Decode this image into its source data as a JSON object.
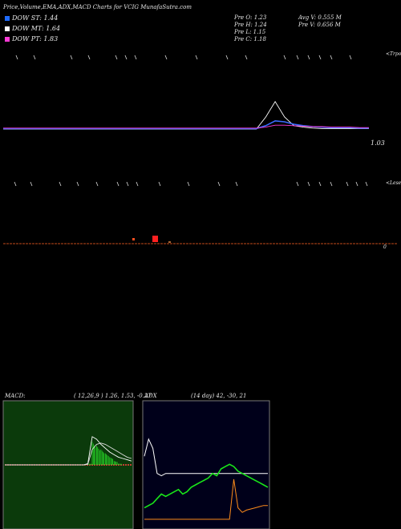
{
  "header": {
    "title": "Price,Volume,EMA,ADX,MACD Charts for VCIG MunafaSutra.com"
  },
  "legend": {
    "items": [
      {
        "label": "DOW ST: 1.44",
        "color": "#1f6bff"
      },
      {
        "label": "DOW MT: 1.64",
        "color": "#ffffff"
      },
      {
        "label": "DOW PT: 1.83",
        "color": "#ff3bd6"
      }
    ]
  },
  "stats": {
    "prev_open": "Pre   O: 1.23",
    "prev_high": "Pre   H: 1.24",
    "prev_low": "Pre   L: 1.15",
    "prev_close": "Pre   C: 1.18",
    "avg_volume": "Avg V: 0.555  M",
    "prev_volume": "Pre   V: 0.656  M"
  },
  "top_panel": {
    "side_label": "<Trpo",
    "price_label": "1.03"
  },
  "volume_panel": {
    "side_label": "<Lesen",
    "price_label": "0"
  },
  "macd": {
    "label": "MACD:",
    "params": "( 12,26,9 ) 1.26,  1.53,  -0.27",
    "colors": {
      "background": "#0b3a0b",
      "hist": "#27d427",
      "zero": "#ff4040"
    }
  },
  "adx": {
    "label": "ADX",
    "params": "(14  day) 42,  -30,  21",
    "colors": {
      "background": "#00001a",
      "adx": "#ffffff",
      "plus_di": "#19e619",
      "minus_di": "#ff8c1a"
    }
  },
  "chart_data": [
    {
      "type": "line",
      "name": "price-ema",
      "x": [
        1,
        2,
        3,
        4,
        5,
        6,
        7,
        8,
        9,
        10,
        11,
        12,
        13,
        14,
        15,
        16,
        17,
        18,
        19,
        20,
        21,
        22,
        23,
        24,
        25,
        26,
        27,
        28,
        29,
        30,
        31,
        32,
        33,
        34,
        35,
        36,
        37,
        38,
        39,
        40
      ],
      "series": [
        {
          "values": [
            1.05,
            1.05,
            1.05,
            1.05,
            1.05,
            1.05,
            1.05,
            1.05,
            1.05,
            1.05,
            1.05,
            1.05,
            1.05,
            1.05,
            1.05,
            1.05,
            1.05,
            1.05,
            1.05,
            1.05,
            1.05,
            1.05,
            1.05,
            1.05,
            1.05,
            1.05,
            1.05,
            1.05,
            1.3,
            1.62,
            1.3,
            1.12,
            1.09,
            1.07,
            1.06,
            1.06,
            1.06,
            1.06,
            1.06,
            1.06
          ]
        },
        {
          "values": [
            1.06,
            1.06,
            1.06,
            1.06,
            1.06,
            1.06,
            1.06,
            1.06,
            1.06,
            1.06,
            1.06,
            1.06,
            1.06,
            1.06,
            1.06,
            1.06,
            1.06,
            1.06,
            1.06,
            1.06,
            1.06,
            1.06,
            1.06,
            1.06,
            1.06,
            1.06,
            1.06,
            1.06,
            1.12,
            1.22,
            1.2,
            1.15,
            1.12,
            1.1,
            1.09,
            1.08,
            1.08,
            1.08,
            1.07,
            1.07
          ]
        },
        {
          "values": [
            1.07,
            1.07,
            1.07,
            1.07,
            1.07,
            1.07,
            1.07,
            1.07,
            1.07,
            1.07,
            1.07,
            1.07,
            1.07,
            1.07,
            1.07,
            1.07,
            1.07,
            1.07,
            1.07,
            1.07,
            1.07,
            1.07,
            1.07,
            1.07,
            1.07,
            1.07,
            1.07,
            1.07,
            1.09,
            1.13,
            1.13,
            1.12,
            1.11,
            1.1,
            1.1,
            1.09,
            1.09,
            1.09,
            1.08,
            1.08
          ]
        }
      ],
      "ylim": [
        0.9,
        1.9
      ]
    },
    {
      "type": "line",
      "name": "macd",
      "x": [
        1,
        2,
        3,
        4,
        5,
        6,
        7,
        8,
        9,
        10,
        11,
        12,
        13,
        14,
        15,
        16,
        17,
        18,
        19,
        20,
        21,
        22,
        23,
        24,
        25,
        26,
        27,
        28,
        29,
        30
      ],
      "series": [
        {
          "values": [
            0,
            0,
            0,
            0,
            0,
            0,
            0,
            0,
            0,
            0,
            0,
            0,
            0,
            0,
            0,
            0,
            0,
            0,
            0,
            0.1,
            2.2,
            2.0,
            1.6,
            1.3,
            1.0,
            0.8,
            0.6,
            0.5,
            0.4,
            0.3
          ]
        },
        {
          "values": [
            0,
            0,
            0,
            0,
            0,
            0,
            0,
            0,
            0,
            0,
            0,
            0,
            0,
            0,
            0,
            0,
            0,
            0,
            0,
            0.05,
            1.2,
            1.6,
            1.7,
            1.6,
            1.4,
            1.2,
            1.0,
            0.8,
            0.6,
            0.5
          ]
        }
      ],
      "histogram": [
        0,
        0,
        0,
        0,
        0,
        0,
        0,
        0,
        0,
        0,
        0,
        0,
        0,
        0,
        0,
        0,
        0,
        0,
        0,
        0.1,
        1.8,
        1.5,
        1.2,
        0.9,
        0.6,
        0.3,
        0.1,
        0,
        0,
        0
      ],
      "ylim": [
        -3,
        7
      ]
    },
    {
      "type": "line",
      "name": "adx",
      "x": [
        1,
        2,
        3,
        4,
        5,
        6,
        7,
        8,
        9,
        10,
        11,
        12,
        13,
        14,
        15,
        16,
        17,
        18,
        19,
        20,
        21,
        22,
        23,
        24,
        25,
        26,
        27,
        28,
        29,
        30
      ],
      "series": [
        {
          "values": [
            55,
            70,
            62,
            40,
            38,
            40,
            40,
            40,
            40,
            40,
            40,
            40,
            40,
            40,
            40,
            40,
            40,
            40,
            40,
            40,
            40,
            40,
            40,
            40,
            40,
            40,
            40,
            40,
            40,
            40
          ]
        },
        {
          "values": [
            10,
            12,
            14,
            18,
            22,
            20,
            22,
            24,
            26,
            22,
            24,
            28,
            30,
            32,
            34,
            36,
            40,
            38,
            44,
            46,
            48,
            46,
            42,
            40,
            38,
            36,
            34,
            32,
            30,
            28
          ]
        },
        {
          "values": [
            0,
            0,
            0,
            0,
            0,
            0,
            0,
            0,
            0,
            0,
            0,
            0,
            0,
            0,
            0,
            0,
            0,
            0,
            0,
            0,
            0,
            35,
            10,
            6,
            8,
            9,
            10,
            11,
            12,
            12
          ]
        }
      ],
      "ylim": [
        -5,
        100
      ]
    }
  ]
}
